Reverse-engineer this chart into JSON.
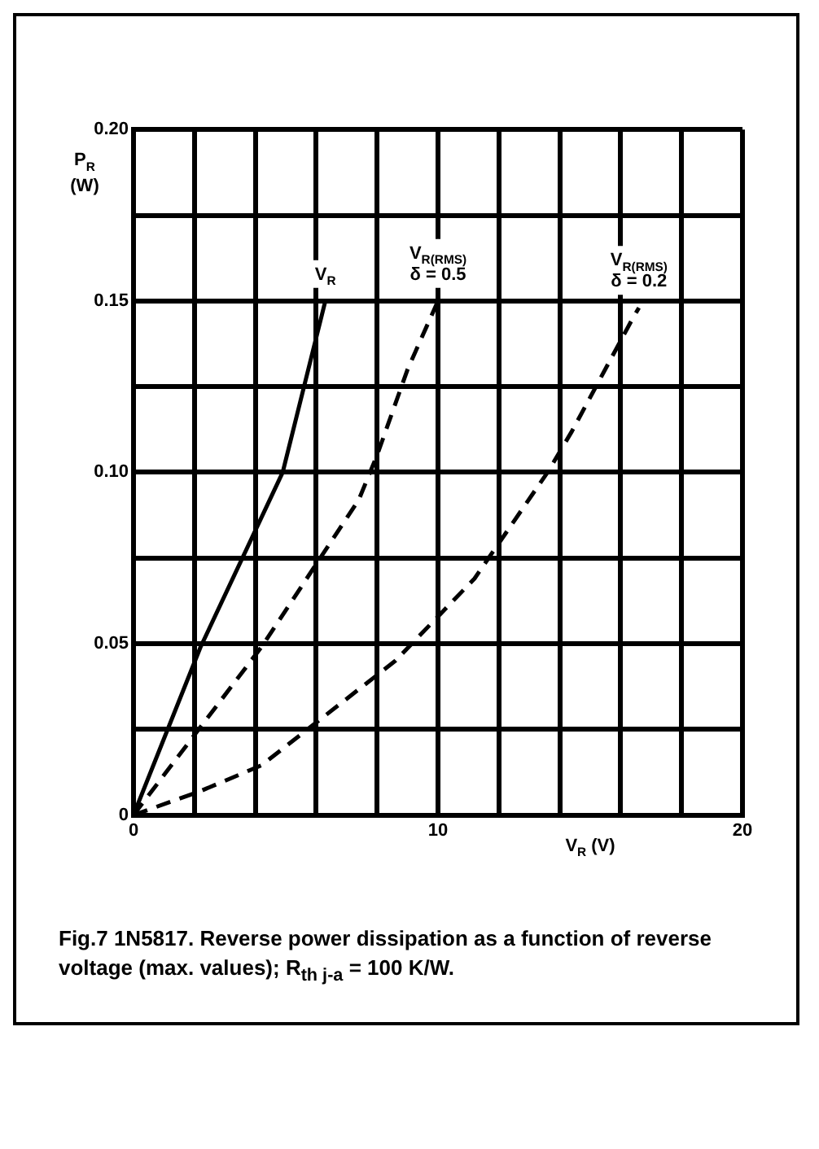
{
  "chart_data": {
    "type": "line",
    "xlabel": "V$_{R}$ (V)",
    "ylabel": "P$_{R}$ (W)",
    "xlim": [
      0,
      20
    ],
    "ylim": [
      0,
      0.2
    ],
    "xticks": [
      0,
      {
        "value": 2,
        "label": null
      },
      {
        "value": 4,
        "label": null
      },
      {
        "value": 6,
        "label": null
      },
      {
        "value": 8,
        "label": null
      },
      10,
      {
        "value": 12,
        "label": null
      },
      {
        "value": 14,
        "label": null
      },
      {
        "value": 16,
        "label": null
      },
      {
        "value": 18,
        "label": null
      },
      20
    ],
    "yticks": [
      0,
      {
        "value": 0.025,
        "label": null
      },
      0.05,
      {
        "value": 0.075,
        "label": null
      },
      {
        "value": 0.1,
        "label": "0.10"
      },
      {
        "value": 0.125,
        "label": null
      },
      0.15,
      {
        "value": 0.175,
        "label": null
      },
      {
        "value": 0.2,
        "label": "0.20"
      }
    ],
    "grid": true,
    "legend": false,
    "marker": "none",
    "series": [
      {
        "name": "V$_{R}$",
        "color": "#000000",
        "line_style": "solid",
        "x": [
          0,
          2.2,
          4.9,
          6.3
        ],
        "values": [
          0,
          0.049,
          0.1,
          0.15
        ]
      },
      {
        "name": "V$_{R(RMS)}$\nδ = 0.5",
        "color": "#000000",
        "line_style": "dashed",
        "x": [
          0,
          4.2,
          7.4,
          8,
          9,
          10
        ],
        "values": [
          0,
          0.049,
          0.092,
          0.105,
          0.13,
          0.15
        ]
      },
      {
        "name": "V$_{R(RMS)}$\nδ = 0.2",
        "color": "#000000",
        "line_style": "dashed",
        "x": [
          0,
          2.2,
          4.2,
          8.6,
          11.2,
          13.6,
          14.4,
          16.4,
          16.6
        ],
        "values": [
          0,
          0.007,
          0.0145,
          0.045,
          0.069,
          0.1,
          0.112,
          0.145,
          0.148
        ]
      }
    ],
    "annotations": [
      "Fig.7   1N5817. Reverse power dissipation as a function of reverse voltage (max. values); R$_{th j-a}$ = 100 K/W."
    ]
  }
}
